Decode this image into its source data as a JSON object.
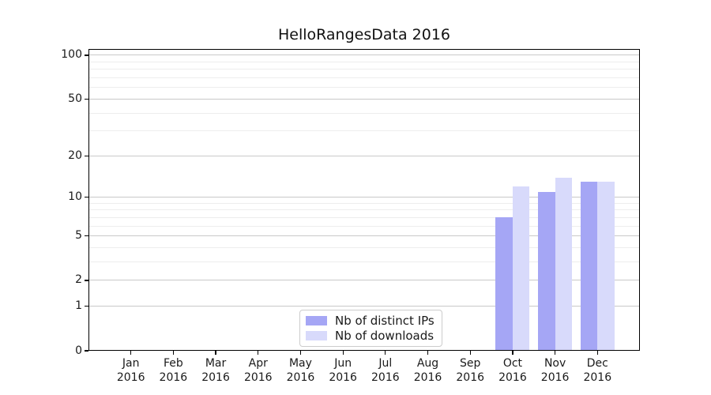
{
  "chart_data": {
    "type": "bar",
    "title": "HelloRangesData 2016",
    "categories": [
      "Jan",
      "Feb",
      "Mar",
      "Apr",
      "May",
      "Jun",
      "Jul",
      "Aug",
      "Sep",
      "Oct",
      "Nov",
      "Dec"
    ],
    "year": "2016",
    "series": [
      {
        "name": "Nb of distinct IPs",
        "color": "#a5a6f5",
        "values": [
          0,
          0,
          0,
          0,
          0,
          0,
          0,
          0,
          0,
          7,
          11,
          13
        ]
      },
      {
        "name": "Nb of downloads",
        "color": "#d8dafb",
        "values": [
          0,
          0,
          0,
          0,
          0,
          0,
          0,
          0,
          0,
          12,
          14,
          13
        ]
      }
    ],
    "xlabel": "",
    "ylabel": "",
    "y_scale": "log10(1+x)",
    "y_ticks": [
      0,
      1,
      2,
      5,
      10,
      20,
      50,
      100
    ],
    "y_minor_gridlines": [
      3,
      4,
      6,
      7,
      8,
      9,
      30,
      40,
      60,
      70,
      80,
      90
    ],
    "ylim": [
      0,
      110.4
    ],
    "grid": true,
    "legend_position": "lower center",
    "colors": {
      "major_grid": "#c9c9c9",
      "minor_grid": "#ededed",
      "spine": "#000000",
      "background": "#ffffff"
    }
  }
}
